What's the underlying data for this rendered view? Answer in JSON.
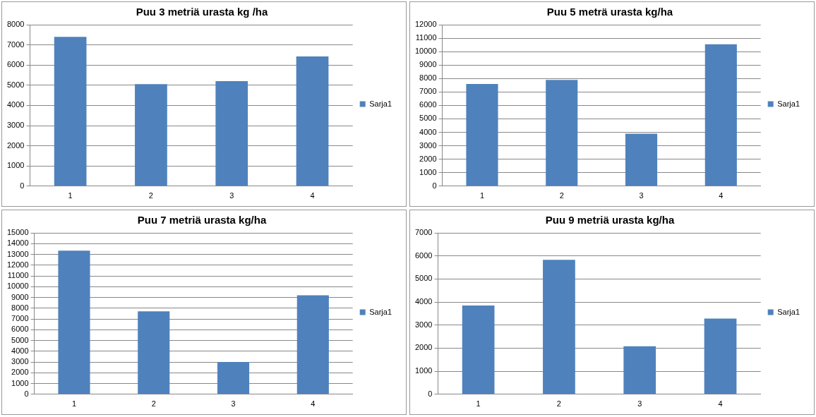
{
  "chart_data": [
    {
      "type": "bar",
      "title": "Puu 3 metriä urasta kg /ha",
      "categories": [
        "1",
        "2",
        "3",
        "4"
      ],
      "series": [
        {
          "name": "Sarja1",
          "color": "#4f81bd",
          "values": [
            7400,
            5050,
            5200,
            6430
          ]
        }
      ],
      "ylim": [
        0,
        8000
      ],
      "yticks": [
        0,
        1000,
        2000,
        3000,
        4000,
        5000,
        6000,
        7000,
        8000
      ],
      "grid": "y",
      "legend": "right"
    },
    {
      "type": "bar",
      "title": "Puu 5 meträ urasta kg/ha",
      "categories": [
        "1",
        "2",
        "3",
        "4"
      ],
      "series": [
        {
          "name": "Sarja1",
          "color": "#4f81bd",
          "values": [
            7600,
            7900,
            3900,
            10550
          ]
        }
      ],
      "ylim": [
        0,
        12000
      ],
      "yticks": [
        0,
        1000,
        2000,
        3000,
        4000,
        5000,
        6000,
        7000,
        8000,
        9000,
        10000,
        11000,
        12000
      ],
      "grid": "y",
      "legend": "right"
    },
    {
      "type": "bar",
      "title": "Puu 7 metriä urasta kg/ha",
      "categories": [
        "1",
        "2",
        "3",
        "4"
      ],
      "series": [
        {
          "name": "Sarja1",
          "color": "#4f81bd",
          "values": [
            13350,
            7700,
            3000,
            9200
          ]
        }
      ],
      "ylim": [
        0,
        15000
      ],
      "yticks": [
        0,
        1000,
        2000,
        3000,
        4000,
        5000,
        6000,
        7000,
        8000,
        9000,
        10000,
        11000,
        12000,
        13000,
        14000,
        15000
      ],
      "grid": "y",
      "legend": "right"
    },
    {
      "type": "bar",
      "title": "Puu 9 metriä urasta kg/ha",
      "categories": [
        "1",
        "2",
        "3",
        "4"
      ],
      "series": [
        {
          "name": "Sarja1",
          "color": "#4f81bd",
          "values": [
            3850,
            5830,
            2080,
            3280
          ]
        }
      ],
      "ylim": [
        0,
        7000
      ],
      "yticks": [
        0,
        1000,
        2000,
        3000,
        4000,
        5000,
        6000,
        7000
      ],
      "grid": "y",
      "legend": "right"
    }
  ]
}
